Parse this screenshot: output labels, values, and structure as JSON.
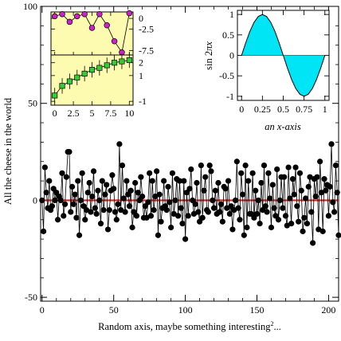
{
  "chart_data": [
    {
      "type": "scatter",
      "xlabel": "Random axis, maybe something interesting",
      "xlabel_superscript": "2",
      "xlabel_suffix": "...",
      "ylabel": "All the cheese in the world",
      "xlim": [
        -1,
        207
      ],
      "ylim": [
        -52,
        100
      ],
      "xticks": [
        "0",
        "50",
        "100",
        "150",
        "200"
      ],
      "yticks": [
        "-50",
        "0",
        "50",
        "100"
      ],
      "hline": 0,
      "hline_color": "#e0201b",
      "marker_color": "#000000",
      "series": [
        {
          "values": [
            0,
            -16,
            17,
            4,
            -4,
            10,
            -5,
            -3,
            6,
            0,
            4,
            -10,
            2,
            0,
            14,
            -8,
            -2,
            12,
            25,
            25,
            -6,
            7,
            -2,
            3,
            -9,
            10,
            -18,
            0,
            14,
            -3,
            -10,
            -5,
            4,
            9,
            -6,
            2,
            15,
            -4,
            -7,
            5,
            0,
            -12,
            10,
            -5,
            3,
            8,
            -15,
            -5,
            5,
            13,
            6,
            -6,
            -10,
            -2,
            29,
            -5,
            18,
            1,
            -6,
            10,
            3,
            -3,
            5,
            -14,
            -6,
            9,
            -8,
            4,
            0,
            12,
            2,
            -9,
            -3,
            -9,
            -1,
            14,
            -8,
            10,
            -5,
            2,
            15,
            -18,
            3,
            -11,
            -4,
            10,
            -3,
            -5,
            7,
            -1,
            -14,
            14,
            -7,
            0,
            11,
            -8,
            10,
            -4,
            -12,
            10,
            -20,
            4,
            -8,
            6,
            16,
            0,
            -7,
            -2,
            9,
            -6,
            -11,
            18,
            -9,
            5,
            12,
            -5,
            -6,
            18,
            15,
            0,
            -4,
            5,
            -7,
            9,
            -6,
            -2,
            -11,
            7,
            6,
            -4,
            10,
            -7,
            -3,
            -15,
            -5,
            0,
            20,
            -4,
            -10,
            14,
            3,
            -18,
            18,
            -14,
            10,
            -7,
            -7,
            14,
            -9,
            5,
            -7,
            0,
            -12,
            9,
            -5,
            18,
            -3,
            -6,
            14,
            1,
            -14,
            8,
            -4,
            -8,
            16,
            -10,
            0,
            12,
            -4,
            12,
            -8,
            -13,
            17,
            1,
            -12,
            11,
            3,
            17,
            -3,
            -11,
            14,
            5,
            -16,
            -9,
            1,
            -12,
            7,
            12,
            -6,
            -22,
            11,
            2,
            12,
            -15,
            20,
            4,
            -16,
            11,
            5,
            8,
            -8,
            7,
            29,
            -1,
            -6,
            18,
            4,
            -18
          ]
        }
      ]
    },
    {
      "type": "line",
      "xlim": [
        -0.5,
        10.5
      ],
      "xticks": [
        "0",
        "2.5",
        "5",
        "7.5",
        "10"
      ],
      "top_panel": {
        "ylim": [
          -8.5,
          1.5
        ],
        "yticks": [
          "0",
          "-2.5",
          "-7.5"
        ],
        "background": "#fdfbb0",
        "marker_color": "#cc22cc",
        "series": [
          {
            "x": [
              0,
              1,
              2,
              3,
              4,
              5,
              6,
              7,
              8,
              9,
              10
            ],
            "values": [
              0.5,
              1.0,
              -0.8,
              0.5,
              1.0,
              -2.2,
              1.0,
              -1.6,
              -5.3,
              -7.9,
              1.2
            ]
          }
        ]
      },
      "bottom_panel": {
        "ylim": [
          -1.3,
          2.6
        ],
        "yticks": [
          "2",
          "1",
          "-1"
        ],
        "background": "#fdfbb0",
        "marker_color": "#33cc33",
        "series": [
          {
            "x": [
              0,
              1,
              2,
              3,
              4,
              5,
              6,
              7,
              8,
              9,
              10
            ],
            "values": [
              -0.55,
              0.2,
              0.55,
              0.85,
              1.15,
              1.45,
              1.6,
              1.8,
              2.0,
              2.1,
              2.2
            ],
            "errors": [
              0.6,
              0.6,
              0.6,
              0.6,
              0.6,
              0.6,
              0.6,
              0.6,
              0.6,
              0.6,
              0.6
            ]
          }
        ]
      }
    },
    {
      "type": "area",
      "function": "sin 2πx",
      "xlabel": "an x-axis",
      "ylabel_prefix": "sin 2",
      "ylabel_pi": "π",
      "ylabel_var": "x",
      "xlim": [
        -0.05,
        1.05
      ],
      "ylim": [
        -1.1,
        1.1
      ],
      "xticks": [
        "0",
        "0.25",
        "0.5",
        "0.75",
        "1"
      ],
      "yticks": [
        "1",
        "0.5",
        "0",
        "-0.5",
        "-1"
      ],
      "fill_color": "#00e5f5",
      "x": [
        0,
        0.05,
        0.1,
        0.15,
        0.2,
        0.25,
        0.3,
        0.35,
        0.4,
        0.45,
        0.5,
        0.55,
        0.6,
        0.65,
        0.7,
        0.75,
        0.8,
        0.85,
        0.9,
        0.95,
        1
      ],
      "values": [
        0,
        0.309,
        0.588,
        0.809,
        0.951,
        1,
        0.951,
        0.809,
        0.588,
        0.309,
        0,
        -0.309,
        -0.588,
        -0.809,
        -0.951,
        -1,
        -0.951,
        -0.809,
        -0.588,
        -0.309,
        0
      ]
    }
  ]
}
